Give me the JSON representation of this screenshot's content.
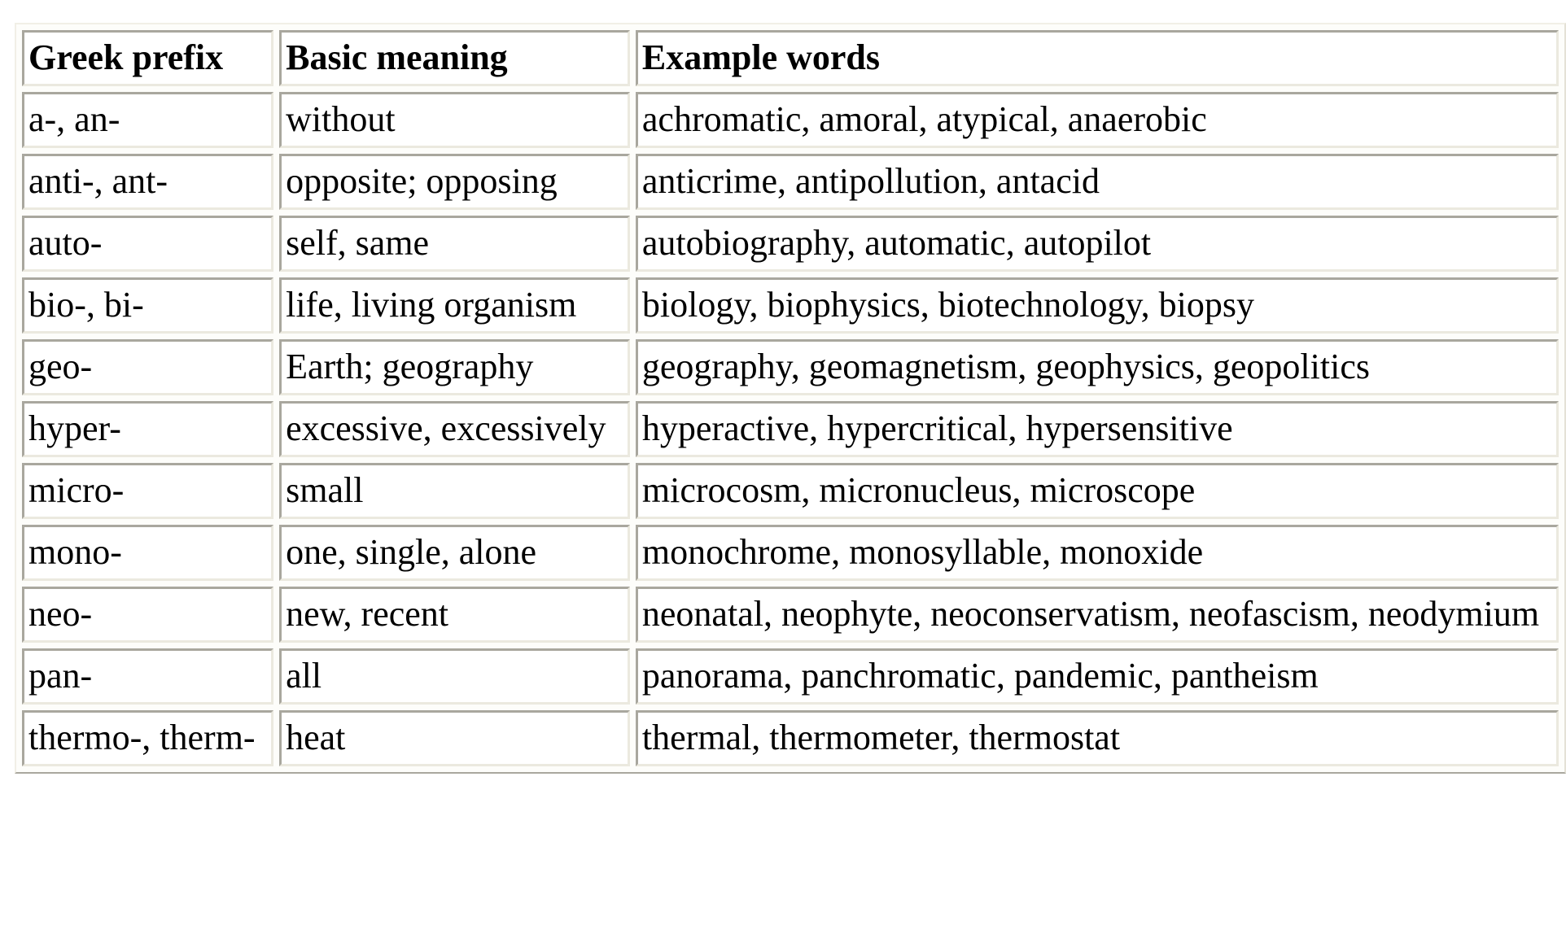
{
  "table": {
    "headers": [
      "Greek prefix",
      "Basic meaning",
      "Example words"
    ],
    "rows": [
      [
        "a-, an-",
        "without",
        "achromatic, amoral, atypical, anaerobic"
      ],
      [
        "anti-, ant-",
        "opposite; opposing",
        "anticrime, antipollution, antacid"
      ],
      [
        "auto-",
        "self, same",
        "autobiography, automatic, autopilot"
      ],
      [
        "bio-, bi-",
        "life, living organism",
        "biology, biophysics, biotechnology, biopsy"
      ],
      [
        "geo-",
        "Earth; geography",
        "geography, geomagnetism, geophysics, geopolitics"
      ],
      [
        "hyper-",
        "excessive, excessively",
        "hyperactive, hypercritical, hypersensitive"
      ],
      [
        "micro-",
        "small",
        "microcosm, micronucleus, microscope"
      ],
      [
        "mono-",
        "one, single, alone",
        "monochrome, monosyllable, monoxide"
      ],
      [
        "neo-",
        "new, recent",
        "neonatal, neophyte, neoconservatism, neofascism, neodymium"
      ],
      [
        "pan-",
        "all",
        "panorama, panchromatic, pandemic, pantheism"
      ],
      [
        "thermo-, therm-",
        "heat",
        "thermal, thermometer, thermostat"
      ]
    ]
  },
  "colors": {
    "border_dark": "#a9a79e",
    "border_light": "#ebe9df"
  }
}
